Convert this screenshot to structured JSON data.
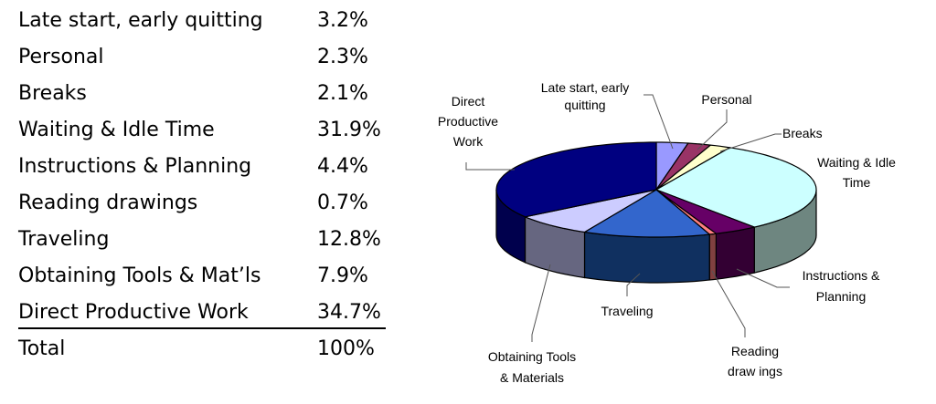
{
  "table": {
    "rows": [
      {
        "label": "Late start, early quitting",
        "value": "3.2%"
      },
      {
        "label": "Personal",
        "value": "2.3%"
      },
      {
        "label": "Breaks",
        "value": "2.1%"
      },
      {
        "label": "Waiting & Idle Time",
        "value": "31.9%"
      },
      {
        "label": "Instructions & Planning",
        "value": "4.4%"
      },
      {
        "label": "Reading drawings",
        "value": "0.7%"
      },
      {
        "label": "Traveling",
        "value": "12.8%"
      },
      {
        "label": "Obtaining Tools & Mat’ls",
        "value": "7.9%"
      },
      {
        "label": "Direct Productive Work",
        "value": "34.7%"
      }
    ],
    "total": {
      "label": "Total",
      "value": "100%"
    }
  },
  "pie_labels": {
    "late_start": [
      "Late start, early",
      "quitting"
    ],
    "personal": [
      "Personal"
    ],
    "breaks": [
      "Breaks"
    ],
    "waiting": [
      "Waiting & Idle",
      "Time"
    ],
    "instructions": [
      "Instructions &",
      "Planning"
    ],
    "reading": [
      "Reading",
      "draw ings"
    ],
    "traveling": [
      "Traveling"
    ],
    "obtaining": [
      "Obtaining Tools",
      "& Materials"
    ],
    "direct": [
      "Direct",
      "Productive",
      "Work"
    ]
  },
  "chart_data": {
    "type": "pie",
    "style": "3d-exploded-none",
    "title": "",
    "categories": [
      "Late start, early quitting",
      "Personal",
      "Breaks",
      "Waiting & Idle Time",
      "Instructions & Planning",
      "Reading drawings",
      "Traveling",
      "Obtaining Tools & Materials",
      "Direct Productive Work"
    ],
    "values": [
      3.2,
      2.3,
      2.1,
      31.9,
      4.4,
      0.7,
      12.8,
      7.9,
      34.7
    ],
    "unit": "%",
    "colors": {
      "top": [
        "#9999ff",
        "#993366",
        "#ffffcc",
        "#ccffff",
        "#660066",
        "#ff8080",
        "#3366cc",
        "#ccccff",
        "#000080"
      ],
      "side": [
        "#5c5c99",
        "#5c1f3d",
        "#99997a",
        "#6e8680",
        "#330033",
        "#804040",
        "#103060",
        "#666680",
        "#00004d"
      ]
    },
    "start_angle_deg": 0,
    "direction": "clockwise",
    "legend": "none (callout labels)"
  }
}
